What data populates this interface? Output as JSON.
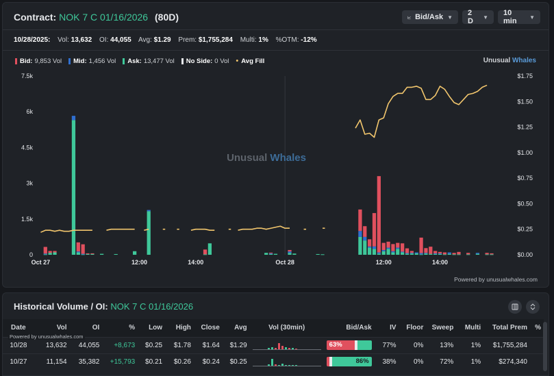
{
  "header": {
    "title_label": "Contract:",
    "contract": "NOK 7 C 01/16/2026",
    "days": "(80D)",
    "controls": {
      "mode": "Bid/Ask",
      "range": "2 D",
      "interval": "10 min"
    }
  },
  "stats": [
    {
      "label": "10/28/2025:",
      "value": ""
    },
    {
      "label": "Vol:",
      "value": "13,632"
    },
    {
      "label": "OI:",
      "value": "44,055"
    },
    {
      "label": "Avg:",
      "value": "$1.29"
    },
    {
      "label": "Prem:",
      "value": "$1,755,284"
    },
    {
      "label": "Multi:",
      "value": "1%"
    },
    {
      "label": "%OTM:",
      "value": "-12%"
    }
  ],
  "legend": [
    {
      "name": "Bid:",
      "value": "9,853 Vol",
      "color": "#e0505e"
    },
    {
      "name": "Mid:",
      "value": "1,456 Vol",
      "color": "#2f6fd0"
    },
    {
      "name": "Ask:",
      "value": "13,477 Vol",
      "color": "#3fc89a"
    },
    {
      "name": "No Side:",
      "value": "0 Vol",
      "color": "#e6e8eb"
    },
    {
      "name": "Avg Fill",
      "value": "",
      "color": "#f2c66d"
    }
  ],
  "brand": {
    "word1": "Unusual",
    "word2": "Whales"
  },
  "powered_by": "Powered by unusualwhales.com",
  "chart_data": {
    "type": "bar",
    "left_axis_ticks": [
      "7.5k",
      "6k",
      "4.5k",
      "3k",
      "1.5k",
      "0"
    ],
    "right_axis_ticks": [
      "$1.75",
      "$1.50",
      "$1.25",
      "$1.00",
      "$0.75",
      "$0.50",
      "$0.25",
      "$0.00"
    ],
    "x_ticks": [
      {
        "label": "Oct 27",
        "slot": 0
      },
      {
        "label": "12:00",
        "slot": 21
      },
      {
        "label": "14:00",
        "slot": 33
      },
      {
        "label": "Oct 28",
        "slot": 52
      },
      {
        "label": "12:00",
        "slot": 73
      },
      {
        "label": "14:00",
        "slot": 85
      }
    ],
    "slots": 100,
    "ylim_volume": [
      0,
      7500
    ],
    "ylim_price": [
      0,
      1.75
    ],
    "bars": [
      {
        "slot": 1,
        "bid": 280,
        "mid": 30,
        "ask": 20
      },
      {
        "slot": 2,
        "bid": 80,
        "mid": 0,
        "ask": 80
      },
      {
        "slot": 3,
        "bid": 60,
        "mid": 0,
        "ask": 100
      },
      {
        "slot": 7,
        "bid": 0,
        "mid": 180,
        "ask": 5650
      },
      {
        "slot": 8,
        "bid": 380,
        "mid": 40,
        "ask": 100
      },
      {
        "slot": 9,
        "bid": 400,
        "mid": 20,
        "ask": 20
      },
      {
        "slot": 10,
        "bid": 30,
        "mid": 0,
        "ask": 30
      },
      {
        "slot": 11,
        "bid": 20,
        "mid": 0,
        "ask": 40
      },
      {
        "slot": 13,
        "bid": 0,
        "mid": 0,
        "ask": 40
      },
      {
        "slot": 16,
        "bid": 0,
        "mid": 0,
        "ask": 30
      },
      {
        "slot": 20,
        "bid": 0,
        "mid": 0,
        "ask": 150
      },
      {
        "slot": 23,
        "bid": 0,
        "mid": 50,
        "ask": 1830
      },
      {
        "slot": 35,
        "bid": 200,
        "mid": 0,
        "ask": 20
      },
      {
        "slot": 36,
        "bid": 0,
        "mid": 0,
        "ask": 480
      },
      {
        "slot": 48,
        "bid": 0,
        "mid": 0,
        "ask": 80
      },
      {
        "slot": 49,
        "bid": 30,
        "mid": 20,
        "ask": 40
      },
      {
        "slot": 50,
        "bid": 0,
        "mid": 0,
        "ask": 40
      },
      {
        "slot": 53,
        "bid": 60,
        "mid": 60,
        "ask": 80
      },
      {
        "slot": 54,
        "bid": 0,
        "mid": 0,
        "ask": 50
      },
      {
        "slot": 59,
        "bid": 0,
        "mid": 0,
        "ask": 30
      },
      {
        "slot": 60,
        "bid": 0,
        "mid": 0,
        "ask": 20
      },
      {
        "slot": 68,
        "bid": 900,
        "mid": 250,
        "ask": 750
      },
      {
        "slot": 69,
        "bid": 450,
        "mid": 150,
        "ask": 600
      },
      {
        "slot": 70,
        "bid": 300,
        "mid": 50,
        "ask": 300
      },
      {
        "slot": 71,
        "bid": 1400,
        "mid": 100,
        "ask": 250
      },
      {
        "slot": 72,
        "bid": 3200,
        "mid": 50,
        "ask": 50
      },
      {
        "slot": 73,
        "bid": 300,
        "mid": 50,
        "ask": 150
      },
      {
        "slot": 74,
        "bid": 250,
        "mid": 50,
        "ask": 250
      },
      {
        "slot": 75,
        "bid": 300,
        "mid": 50,
        "ask": 100
      },
      {
        "slot": 76,
        "bid": 200,
        "mid": 50,
        "ask": 250
      },
      {
        "slot": 77,
        "bid": 350,
        "mid": 30,
        "ask": 100
      },
      {
        "slot": 78,
        "bid": 200,
        "mid": 20,
        "ask": 50
      },
      {
        "slot": 79,
        "bid": 80,
        "mid": 20,
        "ask": 60
      },
      {
        "slot": 80,
        "bid": 0,
        "mid": 40,
        "ask": 60
      },
      {
        "slot": 81,
        "bid": 650,
        "mid": 50,
        "ask": 20
      },
      {
        "slot": 82,
        "bid": 200,
        "mid": 20,
        "ask": 60
      },
      {
        "slot": 83,
        "bid": 300,
        "mid": 0,
        "ask": 40
      },
      {
        "slot": 84,
        "bid": 100,
        "mid": 20,
        "ask": 40
      },
      {
        "slot": 85,
        "bid": 60,
        "mid": 20,
        "ask": 40
      },
      {
        "slot": 86,
        "bid": 80,
        "mid": 0,
        "ask": 20
      },
      {
        "slot": 87,
        "bid": 0,
        "mid": 60,
        "ask": 40
      },
      {
        "slot": 88,
        "bid": 60,
        "mid": 0,
        "ask": 20
      },
      {
        "slot": 89,
        "bid": 100,
        "mid": 0,
        "ask": 20
      },
      {
        "slot": 91,
        "bid": 60,
        "mid": 0,
        "ask": 20
      },
      {
        "slot": 93,
        "bid": 0,
        "mid": 40,
        "ask": 40
      },
      {
        "slot": 95,
        "bid": 60,
        "mid": 0,
        "ask": 20
      },
      {
        "slot": 96,
        "bid": 40,
        "mid": 0,
        "ask": 20
      }
    ],
    "avg_fill_segments": [
      [
        [
          0,
          0.22
        ],
        [
          1,
          0.24
        ],
        [
          2,
          0.24
        ],
        [
          3,
          0.23
        ],
        [
          4,
          0.24
        ],
        [
          5,
          0.23
        ],
        [
          6,
          0.23
        ],
        [
          7,
          0.24
        ],
        [
          8,
          0.24
        ],
        [
          9,
          0.24
        ],
        [
          10,
          0.24
        ],
        [
          11,
          0.24
        ]
      ],
      [
        [
          14,
          0.24
        ],
        [
          15,
          0.25
        ],
        [
          16,
          0.25
        ],
        [
          17,
          0.25
        ],
        [
          18,
          0.25
        ],
        [
          19,
          0.25
        ],
        [
          20,
          0.25
        ]
      ],
      [
        [
          22,
          0.24
        ],
        [
          23,
          0.25
        ]
      ],
      [
        [
          26,
          0.25
        ],
        [
          26.5,
          0.25
        ]
      ],
      [
        [
          29,
          0.25
        ],
        [
          29.5,
          0.25
        ]
      ],
      [
        [
          32,
          0.24
        ],
        [
          33,
          0.25
        ],
        [
          34,
          0.25
        ],
        [
          35,
          0.25
        ],
        [
          36,
          0.24
        ],
        [
          37,
          0.24
        ]
      ],
      [
        [
          40,
          0.25
        ],
        [
          40.5,
          0.25
        ]
      ],
      [
        [
          42,
          0.24
        ],
        [
          43,
          0.25
        ],
        [
          44,
          0.25
        ],
        [
          45,
          0.25
        ],
        [
          46,
          0.26
        ],
        [
          47,
          0.26
        ],
        [
          48,
          0.25
        ],
        [
          49,
          0.26
        ],
        [
          50,
          0.27
        ],
        [
          51,
          0.28
        ],
        [
          52,
          0.26
        ],
        [
          53,
          0.26
        ]
      ],
      [
        [
          56,
          0.25
        ],
        [
          56.5,
          0.25
        ]
      ],
      [
        [
          60,
          0.26
        ],
        [
          60.5,
          0.26
        ]
      ],
      [
        [
          67,
          1.24
        ],
        [
          68,
          1.32
        ],
        [
          69,
          1.18
        ],
        [
          70,
          1.19
        ],
        [
          71,
          1.15
        ],
        [
          72,
          1.32
        ],
        [
          73,
          1.34
        ],
        [
          74,
          1.48
        ],
        [
          75,
          1.55
        ],
        [
          76,
          1.58
        ],
        [
          77,
          1.58
        ],
        [
          78,
          1.64
        ],
        [
          79,
          1.64
        ],
        [
          80,
          1.65
        ],
        [
          81,
          1.63
        ],
        [
          82,
          1.52
        ],
        [
          83,
          1.52
        ],
        [
          84,
          1.56
        ],
        [
          85,
          1.65
        ],
        [
          86,
          1.62
        ],
        [
          87,
          1.55
        ],
        [
          88,
          1.49
        ],
        [
          89,
          1.47
        ],
        [
          90,
          1.52
        ],
        [
          91,
          1.57
        ],
        [
          92,
          1.58
        ],
        [
          93,
          1.6
        ],
        [
          94,
          1.64
        ],
        [
          95,
          1.66
        ]
      ]
    ]
  },
  "history": {
    "title_label": "Historical Volume / OI:",
    "contract": "NOK 7 C 01/16/2026",
    "powered_by": "Powered by unusualwhales.com",
    "columns": [
      "Date",
      "Vol",
      "OI",
      "%",
      "Low",
      "High",
      "Close",
      "Avg",
      "Vol (30min)",
      "Bid/Ask",
      "IV",
      "Floor",
      "Sweep",
      "Multi",
      "Total Prem",
      "%"
    ],
    "rows": [
      {
        "date": "10/28",
        "vol": "13,632",
        "oi": "44,055",
        "change": "+8,673",
        "low": "$0.25",
        "high": "$1.78",
        "close": "$1.64",
        "avg": "$1.29",
        "bid_pct": 63,
        "bid_label": "63%",
        "ask_label": "",
        "iv": "77%",
        "floor": "0%",
        "sweep": "13%",
        "multi": "1%",
        "total_prem": "$1,755,284",
        "mini": [
          {
            "h": 2,
            "c": "#3fc89a"
          },
          {
            "h": 3,
            "c": "#3fc89a"
          },
          {
            "h": 2,
            "c": "#e0505e"
          },
          {
            "h": 9,
            "c": "#e0505e"
          },
          {
            "h": 5,
            "c": "#e0505e"
          },
          {
            "h": 3,
            "c": "#3fc89a"
          },
          {
            "h": 2,
            "c": "#e0505e"
          },
          {
            "h": 2,
            "c": "#3fc89a"
          },
          {
            "h": 1,
            "c": "#e0505e"
          }
        ]
      },
      {
        "date": "10/27",
        "vol": "11,154",
        "oi": "35,382",
        "change": "+15,793",
        "low": "$0.21",
        "high": "$0.26",
        "close": "$0.24",
        "avg": "$0.25",
        "bid_pct": 0,
        "bid_label": "",
        "ask_label": "86%",
        "iv": "38%",
        "floor": "0%",
        "sweep": "72%",
        "multi": "1%",
        "total_prem": "$274,340",
        "mini": [
          {
            "h": 2,
            "c": "#3fc89a"
          },
          {
            "h": 10,
            "c": "#3fc89a"
          },
          {
            "h": 2,
            "c": "#e0505e"
          },
          {
            "h": 1,
            "c": "#3fc89a"
          },
          {
            "h": 3,
            "c": "#3fc89a"
          },
          {
            "h": 1,
            "c": "#3fc89a"
          },
          {
            "h": 1,
            "c": "#3fc89a"
          },
          {
            "h": 1,
            "c": "#3fc89a"
          },
          {
            "h": 1,
            "c": "#3fc89a"
          }
        ]
      }
    ]
  }
}
